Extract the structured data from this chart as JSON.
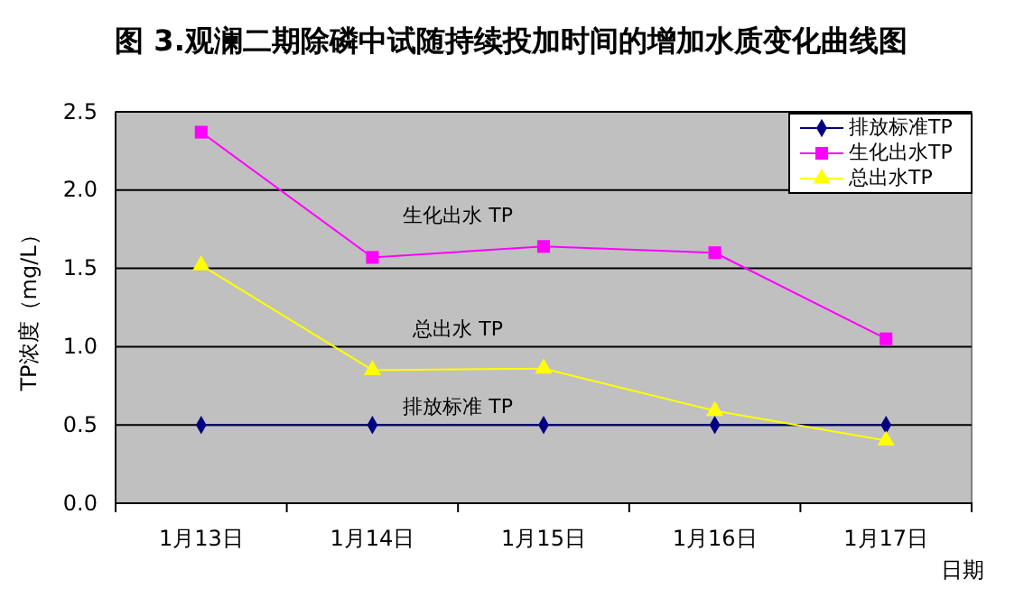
{
  "chart_data": {
    "type": "line",
    "title": "图 3.观澜二期除磷中试随持续投加时间的增加水质变化曲线图",
    "xlabel": "日期",
    "ylabel": "TP浓度（mg/L）",
    "categories": [
      "1月13日",
      "1月14日",
      "1月15日",
      "1月16日",
      "1月17日"
    ],
    "series": [
      {
        "name": "排放标准TP",
        "color": "#000080",
        "marker": "diamond",
        "values": [
          0.5,
          0.5,
          0.5,
          0.5,
          0.5
        ]
      },
      {
        "name": "生化出水TP",
        "color": "#ff00ff",
        "marker": "square",
        "values": [
          2.37,
          1.57,
          1.64,
          1.6,
          1.05
        ]
      },
      {
        "name": "总出水TP",
        "color": "#ffff00",
        "marker": "triangle",
        "values": [
          1.52,
          0.85,
          0.86,
          0.59,
          0.4
        ]
      }
    ],
    "annotations": [
      "生化出水 TP",
      "总出水 TP",
      "排放标准 TP"
    ],
    "ylim": [
      0,
      2.5
    ],
    "yticks": [
      {
        "value": 0,
        "label": "0.0"
      },
      {
        "value": 0.5,
        "label": "0.5"
      },
      {
        "value": 1,
        "label": "1.0"
      },
      {
        "value": 1.5,
        "label": "1.5"
      },
      {
        "value": 2,
        "label": "2.0"
      },
      {
        "value": 2.5,
        "label": "2.5"
      }
    ],
    "grid": "y",
    "legend": "top right"
  }
}
